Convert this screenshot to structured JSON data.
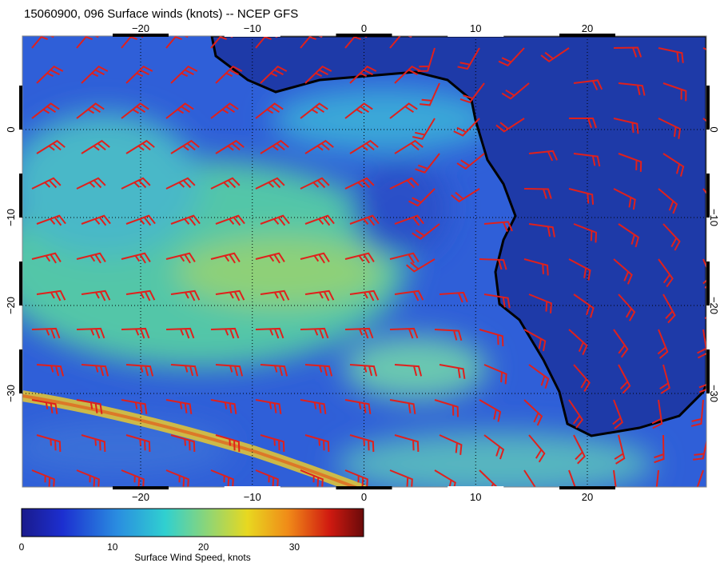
{
  "title": "15060900, 096 Surface winds (knots) -- NCEP GFS",
  "map": {
    "lon_ticks": [
      "−20",
      "−10",
      "0",
      "10",
      "20"
    ],
    "lat_ticks": [
      "0",
      "−10",
      "−20",
      "−30"
    ]
  },
  "colorbar": {
    "ticks": [
      "0",
      "10",
      "20",
      "30"
    ],
    "label": "Surface Wind Speed, knots"
  }
}
